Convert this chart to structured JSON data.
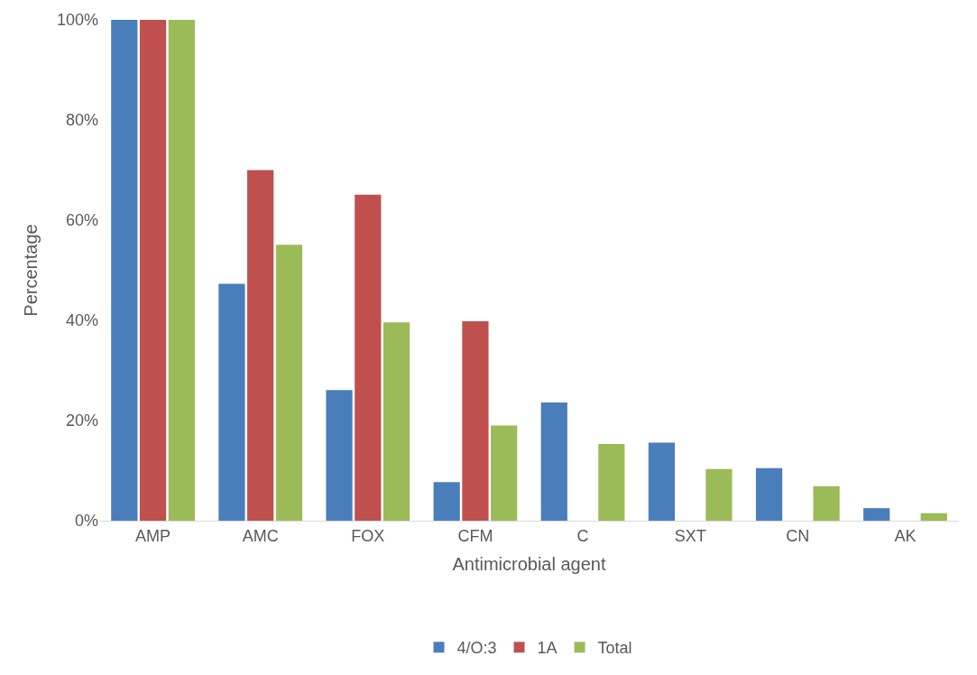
{
  "chart_data": {
    "type": "bar",
    "xlabel": "Antimicrobial agent",
    "ylabel": "Percentage",
    "categories": [
      "AMP",
      "AMC",
      "FOX",
      "CFM",
      "C",
      "SXT",
      "CN",
      "AK"
    ],
    "series": [
      {
        "name": "4/O:3",
        "color": "#4a7ebb",
        "values": [
          100,
          47.3,
          26.1,
          7.7,
          23.6,
          15.6,
          10.5,
          2.5
        ]
      },
      {
        "name": "1A",
        "color": "#c0504d",
        "values": [
          100,
          70,
          65.1,
          39.8,
          0,
          0,
          0,
          0
        ]
      },
      {
        "name": "Total",
        "color": "#9bbb59",
        "values": [
          100,
          55.1,
          39.6,
          19,
          15.3,
          10.3,
          6.9,
          1.5
        ]
      }
    ],
    "ylim": [
      0,
      100
    ],
    "yticks": [
      {
        "value": 0,
        "label": "0%"
      },
      {
        "value": 20,
        "label": "20%"
      },
      {
        "value": 40,
        "label": "40%"
      },
      {
        "value": 60,
        "label": "60%"
      },
      {
        "value": 80,
        "label": "80%"
      },
      {
        "value": 100,
        "label": "100%"
      }
    ],
    "legend": "bottom"
  }
}
